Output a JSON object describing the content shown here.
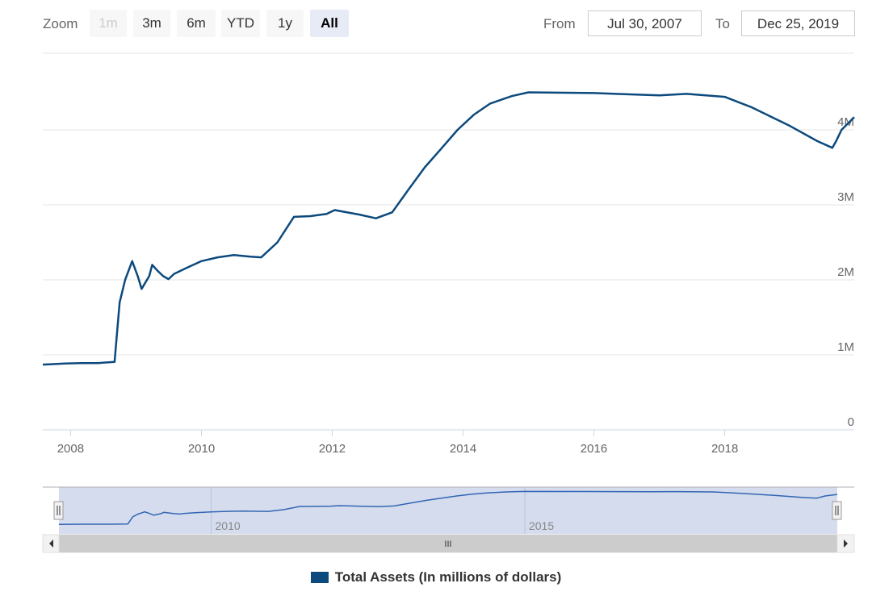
{
  "zoom": {
    "label": "Zoom",
    "buttons": [
      {
        "label": "1m",
        "state": "disabled"
      },
      {
        "label": "3m",
        "state": "normal"
      },
      {
        "label": "6m",
        "state": "normal"
      },
      {
        "label": "YTD",
        "state": "normal"
      },
      {
        "label": "1y",
        "state": "normal"
      },
      {
        "label": "All",
        "state": "active"
      }
    ]
  },
  "range": {
    "from_label": "From",
    "from_value": "Jul 30, 2007",
    "to_label": "To",
    "to_value": "Dec 25, 2019"
  },
  "colors": {
    "series": "#0c4a7d",
    "navigator_mask": "#ccd6eb",
    "navigator_line": "#3366b3",
    "grid": "#e6e6e6"
  },
  "chart_data": {
    "type": "line",
    "title": "",
    "xlabel": "",
    "ylabel": "",
    "x_range": [
      "2007-07-30",
      "2019-12-25"
    ],
    "ylim": [
      0,
      5000000
    ],
    "x_tick_labels": [
      "2008",
      "2010",
      "2012",
      "2014",
      "2016",
      "2018"
    ],
    "y_tick_labels": [
      "0",
      "1M",
      "2M",
      "3M",
      "4M"
    ],
    "y_tick_values": [
      0,
      1000000,
      2000000,
      3000000,
      4000000
    ],
    "grid": true,
    "legend_position": "bottom-center",
    "series": [
      {
        "name": "Total Assets (In millions of dollars)",
        "points": [
          [
            "2007-07-30",
            870000
          ],
          [
            "2007-12-01",
            885000
          ],
          [
            "2008-03-01",
            890000
          ],
          [
            "2008-06-01",
            890000
          ],
          [
            "2008-09-03",
            905000
          ],
          [
            "2008-09-17",
            1300000
          ],
          [
            "2008-10-01",
            1700000
          ],
          [
            "2008-11-01",
            2000000
          ],
          [
            "2008-12-10",
            2250000
          ],
          [
            "2009-01-10",
            2050000
          ],
          [
            "2009-02-01",
            1880000
          ],
          [
            "2009-03-15",
            2050000
          ],
          [
            "2009-04-01",
            2200000
          ],
          [
            "2009-05-01",
            2120000
          ],
          [
            "2009-06-01",
            2050000
          ],
          [
            "2009-07-01",
            2010000
          ],
          [
            "2009-08-01",
            2080000
          ],
          [
            "2009-10-01",
            2150000
          ],
          [
            "2010-01-01",
            2250000
          ],
          [
            "2010-04-01",
            2300000
          ],
          [
            "2010-07-01",
            2330000
          ],
          [
            "2010-10-01",
            2310000
          ],
          [
            "2010-12-01",
            2300000
          ],
          [
            "2011-03-01",
            2500000
          ],
          [
            "2011-06-01",
            2840000
          ],
          [
            "2011-09-01",
            2850000
          ],
          [
            "2011-12-01",
            2880000
          ],
          [
            "2012-01-15",
            2930000
          ],
          [
            "2012-06-01",
            2870000
          ],
          [
            "2012-09-01",
            2820000
          ],
          [
            "2012-12-01",
            2900000
          ],
          [
            "2013-03-01",
            3200000
          ],
          [
            "2013-06-01",
            3500000
          ],
          [
            "2013-09-01",
            3750000
          ],
          [
            "2013-12-01",
            4000000
          ],
          [
            "2014-03-01",
            4200000
          ],
          [
            "2014-06-01",
            4350000
          ],
          [
            "2014-10-01",
            4450000
          ],
          [
            "2015-01-01",
            4500000
          ],
          [
            "2016-01-01",
            4490000
          ],
          [
            "2017-01-01",
            4460000
          ],
          [
            "2017-06-01",
            4480000
          ],
          [
            "2018-01-01",
            4440000
          ],
          [
            "2018-06-01",
            4300000
          ],
          [
            "2019-01-01",
            4050000
          ],
          [
            "2019-06-01",
            3850000
          ],
          [
            "2019-08-25",
            3760000
          ],
          [
            "2019-09-15",
            3850000
          ],
          [
            "2019-10-15",
            4000000
          ],
          [
            "2019-12-25",
            4170000
          ]
        ]
      }
    ]
  },
  "navigator": {
    "tick_labels": [
      "2010",
      "2015"
    ],
    "scrollbar_grip": "III"
  },
  "legend": {
    "label": "Total Assets (In millions of dollars)"
  }
}
